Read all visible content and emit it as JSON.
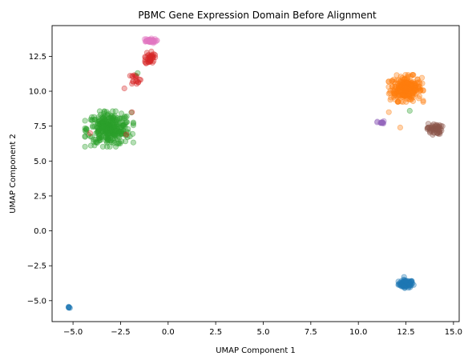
{
  "chart_data": {
    "type": "scatter",
    "title": "PBMC Gene Expression Domain Before Alignment",
    "xlabel": "UMAP Component 1",
    "ylabel": "UMAP Component 2",
    "xlim": [
      -6.1,
      15.3
    ],
    "ylim": [
      -6.5,
      14.7
    ],
    "xticks": [
      "−5.0",
      "−2.5",
      "0.0",
      "2.5",
      "5.0",
      "7.5",
      "10.0",
      "12.5",
      "15.0"
    ],
    "xtick_values": [
      -5,
      -2.5,
      0,
      2.5,
      5,
      7.5,
      10,
      12.5,
      15
    ],
    "yticks": [
      "−5.0",
      "−2.5",
      "0.0",
      "2.5",
      "5.0",
      "7.5",
      "10.0",
      "12.5"
    ],
    "ytick_values": [
      -5,
      -2.5,
      0,
      2.5,
      5,
      7.5,
      10,
      12.5
    ],
    "grid": false,
    "legend": "none",
    "clusters": [
      {
        "color": "#1f77b4",
        "center": [
          12.5,
          -3.8
        ],
        "spread": [
          0.35,
          0.25
        ],
        "points": 90
      },
      {
        "color": "#1f77b4",
        "center": [
          -5.2,
          -5.5
        ],
        "spread": [
          0.07,
          0.06
        ],
        "points": 6
      },
      {
        "color": "#ff7f0e",
        "center": [
          12.5,
          10.2
        ],
        "spread": [
          0.75,
          0.8
        ],
        "points": 260
      },
      {
        "color": "#2ca02c",
        "center": [
          -3.1,
          7.3
        ],
        "spread": [
          1.05,
          1.05
        ],
        "points": 320
      },
      {
        "color": "#d62728",
        "center": [
          -0.95,
          12.4
        ],
        "spread": [
          0.22,
          0.45
        ],
        "points": 40
      },
      {
        "color": "#d62728",
        "center": [
          -1.7,
          10.9
        ],
        "spread": [
          0.25,
          0.35
        ],
        "points": 18
      },
      {
        "color": "#e377c2",
        "center": [
          -1.0,
          13.6
        ],
        "spread": [
          0.35,
          0.15
        ],
        "points": 45
      },
      {
        "color": "#8c564b",
        "center": [
          14.0,
          7.3
        ],
        "spread": [
          0.35,
          0.35
        ],
        "points": 55
      },
      {
        "color": "#9467bd",
        "center": [
          11.2,
          7.75
        ],
        "spread": [
          0.18,
          0.1
        ],
        "points": 14
      }
    ],
    "outliers": [
      {
        "color": "#d62728",
        "x": -2.3,
        "y": 10.2
      },
      {
        "color": "#d62728",
        "x": -1.9,
        "y": 8.5
      },
      {
        "color": "#d62728",
        "x": -4.1,
        "y": 7.0
      },
      {
        "color": "#d62728",
        "x": -2.2,
        "y": 6.9
      },
      {
        "color": "#2ca02c",
        "x": -1.6,
        "y": 11.3
      },
      {
        "color": "#2ca02c",
        "x": 12.7,
        "y": 8.6
      },
      {
        "color": "#ff7f0e",
        "x": 11.6,
        "y": 8.5
      },
      {
        "color": "#ff7f0e",
        "x": 12.2,
        "y": 7.4
      },
      {
        "color": "#1f77b4",
        "x": 12.4,
        "y": -3.3
      }
    ]
  }
}
